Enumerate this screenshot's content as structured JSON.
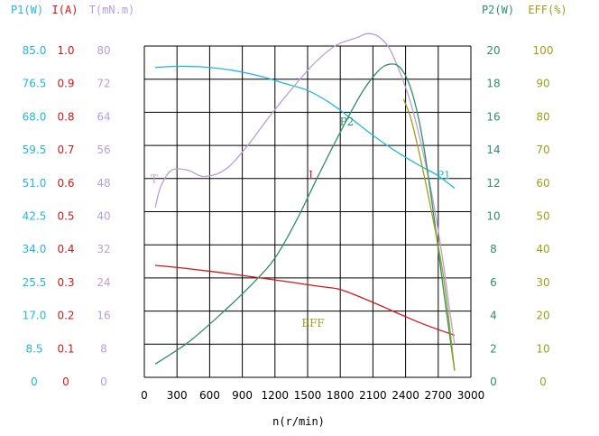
{
  "colors": {
    "p1": "#22b8d8",
    "i": "#cc1a1a",
    "t": "#b89fd8",
    "p2": "#2f8f68",
    "eff": "#9aa11a",
    "grid": "#000000",
    "x_text": "#000000"
  },
  "chart_data": {
    "type": "line",
    "title": "",
    "xlabel": "n(r/min)",
    "xlim": [
      0,
      3000
    ],
    "x_ticks": [
      "0",
      "300",
      "600",
      "900",
      "1200",
      "1500",
      "1800",
      "2100",
      "2400",
      "2700",
      "3000"
    ],
    "axes": [
      {
        "key": "p1",
        "label": "P1(W)",
        "side": "left",
        "max": 85,
        "ticks": [
          "85.0",
          "76.5",
          "68.0",
          "59.5",
          "51.0",
          "42.5",
          "34.0",
          "25.5",
          "17.0",
          "8.5",
          "0"
        ]
      },
      {
        "key": "i",
        "label": "I(A)",
        "side": "left",
        "max": 1.0,
        "ticks": [
          "1.0",
          "0.9",
          "0.8",
          "0.7",
          "0.6",
          "0.5",
          "0.4",
          "0.3",
          "0.2",
          "0.1",
          "0"
        ]
      },
      {
        "key": "t",
        "label": "T(mN.m)",
        "side": "left",
        "max": 80,
        "ticks": [
          "80",
          "72",
          "64",
          "56",
          "48",
          "40",
          "32",
          "24",
          "16",
          "8",
          "0"
        ]
      },
      {
        "key": "p2",
        "label": "P2(W)",
        "side": "right",
        "max": 20,
        "ticks": [
          "20",
          "18",
          "16",
          "14",
          "12",
          "10",
          "8",
          "6",
          "4",
          "2",
          "0"
        ]
      },
      {
        "key": "eff",
        "label": "EFF(%)",
        "side": "right",
        "max": 100,
        "ticks": [
          "100",
          "90",
          "80",
          "70",
          "60",
          "50",
          "40",
          "30",
          "20",
          "10",
          "0"
        ]
      }
    ],
    "series": [
      {
        "name": "P1",
        "axis": "p1",
        "label": "P1",
        "label_at": [
          2750,
          51
        ],
        "x": [
          100,
          300,
          500,
          700,
          900,
          1100,
          1300,
          1500,
          1700,
          1900,
          2100,
          2300,
          2500,
          2700,
          2850
        ],
        "y": [
          79.5,
          79.8,
          79.7,
          79.2,
          78.3,
          77,
          75.3,
          73.6,
          70.5,
          66.4,
          62.1,
          58.2,
          54.8,
          51.7,
          48.5
        ]
      },
      {
        "name": "I",
        "axis": "i",
        "label": "I",
        "label_at": [
          1530,
          0.6
        ],
        "x": [
          100,
          400,
          800,
          1200,
          1600,
          1800,
          2000,
          2200,
          2400,
          2600,
          2850
        ],
        "y": [
          0.338,
          0.328,
          0.312,
          0.294,
          0.275,
          0.265,
          0.24,
          0.212,
          0.183,
          0.156,
          0.127
        ]
      },
      {
        "name": "T",
        "axis": "t",
        "label": "T",
        "label_at": [
          90,
          47
        ],
        "x": [
          100,
          150,
          250,
          400,
          550,
          750,
          950,
          1150,
          1350,
          1550,
          1750,
          1950,
          2050,
          2150,
          2250,
          2350,
          2450,
          2550,
          2650,
          2750,
          2800,
          2850
        ],
        "y": [
          41,
          46,
          50,
          50,
          48.5,
          50.3,
          56,
          63,
          69.5,
          75.5,
          80,
          82,
          83,
          82.3,
          79.5,
          73.5,
          66,
          55.5,
          43,
          27,
          17,
          8
        ]
      },
      {
        "name": "P2",
        "axis": "p2",
        "label": "P2",
        "label_at": [
          1860,
          15.2
        ],
        "x": [
          100,
          400,
          700,
          1000,
          1200,
          1400,
          1600,
          1800,
          2000,
          2150,
          2250,
          2350,
          2450,
          2550,
          2650,
          2750,
          2850
        ],
        "y": [
          0.8,
          2.1,
          3.8,
          5.7,
          7.2,
          9.5,
          12.2,
          14.8,
          17.2,
          18.5,
          18.9,
          18.7,
          17.4,
          14.6,
          10.2,
          5.2,
          0.4
        ]
      },
      {
        "name": "EFF",
        "axis": "eff",
        "label": "EFF",
        "label_at": [
          1550,
          15.3
        ],
        "x": [
          2380,
          2450,
          2550,
          2650,
          2750,
          2850
        ],
        "y": [
          84,
          78,
          64,
          48,
          30,
          2
        ]
      }
    ]
  }
}
